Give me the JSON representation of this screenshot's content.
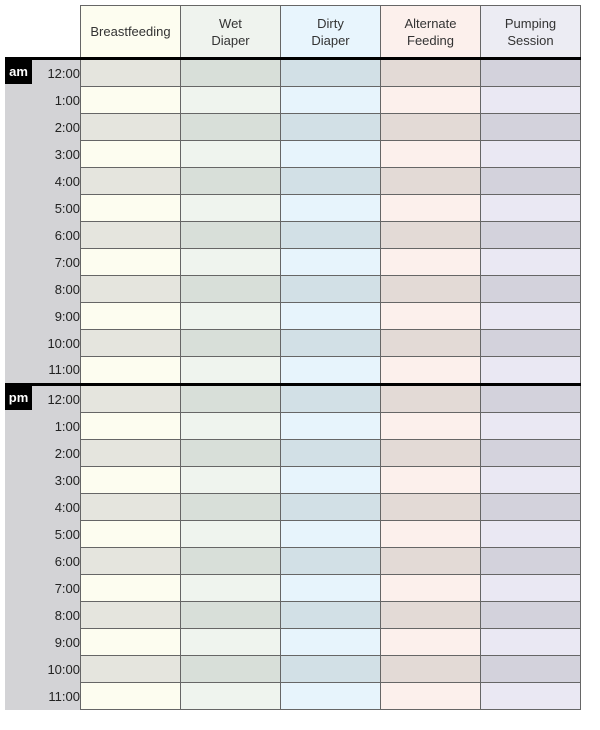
{
  "columns": [
    {
      "label_line1": "Breastfeeding",
      "label_line2": "",
      "header_color": "#fdfdf0",
      "light": "#fdfdf0",
      "dark": "#e5e5de"
    },
    {
      "label_line1": "Wet",
      "label_line2": "Diaper",
      "header_color": "#eff3ee",
      "light": "#eff4ee",
      "dark": "#d8dfd9"
    },
    {
      "label_line1": "Dirty",
      "label_line2": "Diaper",
      "header_color": "#e8f5fd",
      "light": "#e7f4fc",
      "dark": "#d2e0e6"
    },
    {
      "label_line1": "Alternate",
      "label_line2": "Feeding",
      "header_color": "#fcf0ec",
      "light": "#fcf0ec",
      "dark": "#e3dad6"
    },
    {
      "label_line1": "Pumping",
      "label_line2": "Session",
      "header_color": "#ececf3",
      "light": "#eae8f3",
      "dark": "#d3d2dc"
    }
  ],
  "periods": [
    {
      "label": "am",
      "times": [
        "12:00",
        "1:00",
        "2:00",
        "3:00",
        "4:00",
        "5:00",
        "6:00",
        "7:00",
        "8:00",
        "9:00",
        "10:00",
        "11:00"
      ]
    },
    {
      "label": "pm",
      "times": [
        "12:00",
        "1:00",
        "2:00",
        "3:00",
        "4:00",
        "5:00",
        "6:00",
        "7:00",
        "8:00",
        "9:00",
        "10:00",
        "11:00"
      ]
    }
  ]
}
